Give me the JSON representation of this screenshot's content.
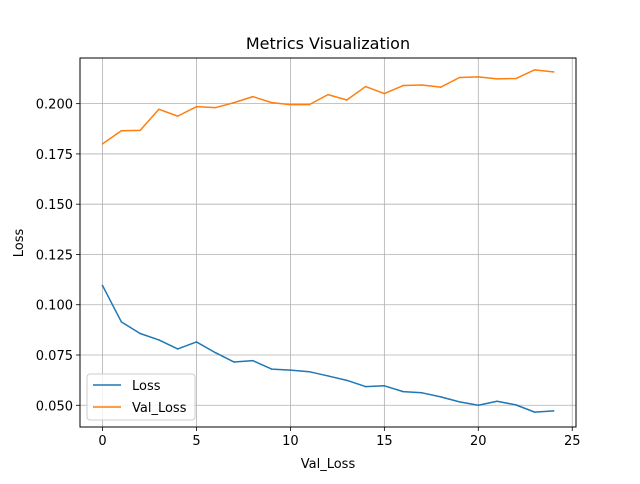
{
  "chart_data": {
    "type": "line",
    "title": "Metrics Visualization",
    "xlabel": "Val_Loss",
    "ylabel": "Loss",
    "xlim": [
      -1.2,
      25.2
    ],
    "ylim": [
      0.0392,
      0.2227
    ],
    "x_ticks": [
      0,
      5,
      10,
      15,
      20,
      25
    ],
    "y_ticks": [
      0.05,
      0.075,
      0.1,
      0.125,
      0.15,
      0.175,
      0.2
    ],
    "x_tick_labels": [
      "0",
      "5",
      "10",
      "15",
      "20",
      "25"
    ],
    "y_tick_labels": [
      "0.050",
      "0.075",
      "0.100",
      "0.125",
      "0.150",
      "0.175",
      "0.200"
    ],
    "grid": true,
    "legend_position": "lower-left",
    "x": [
      0,
      1,
      2,
      3,
      4,
      5,
      6,
      7,
      8,
      9,
      10,
      11,
      12,
      13,
      14,
      15,
      16,
      17,
      18,
      19,
      20,
      21,
      22,
      23,
      24
    ],
    "series": [
      {
        "name": "Loss",
        "color": "#1f77b4",
        "values": [
          0.1095,
          0.0915,
          0.0857,
          0.0825,
          0.078,
          0.0815,
          0.0762,
          0.0715,
          0.0722,
          0.068,
          0.0675,
          0.0667,
          0.0646,
          0.0624,
          0.0593,
          0.0597,
          0.0568,
          0.0562,
          0.0542,
          0.0517,
          0.05,
          0.052,
          0.0502,
          0.0466,
          0.0472
        ]
      },
      {
        "name": "Val_Loss",
        "color": "#ff7f0e",
        "values": [
          0.18,
          0.1865,
          0.1867,
          0.1972,
          0.1938,
          0.1985,
          0.198,
          0.2005,
          0.2035,
          0.2005,
          0.1995,
          0.1995,
          0.2045,
          0.2018,
          0.2085,
          0.205,
          0.209,
          0.2093,
          0.2082,
          0.213,
          0.2133,
          0.2123,
          0.2125,
          0.2168,
          0.2158
        ]
      }
    ]
  }
}
